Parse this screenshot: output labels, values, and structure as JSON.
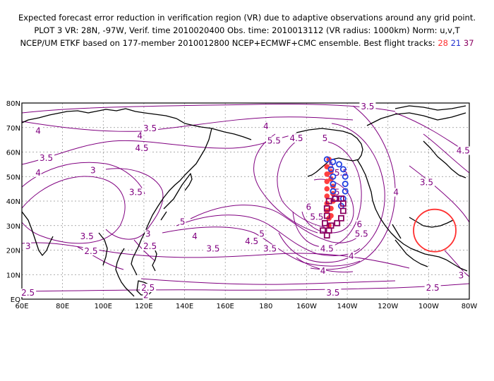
{
  "header": {
    "line1": "Expected forecast error reduction in verification region (VR) due to adaptive observations around any grid point.",
    "line2": "PLOT 3 VR: 28N, -97W, Verif. time 2010020400 Obs. time: 2010013112 (VR radius: 1000km) Norm: u,v,T",
    "line3_prefix": "NCEP/UM ETKF based on 177-member 2010012800 NCEP+ECMWF+CMC ensemble. Best flight tracks:",
    "track_a": "28",
    "track_b": "21",
    "track_c": "37"
  },
  "map": {
    "lon_labels": [
      "60E",
      "80E",
      "100E",
      "120E",
      "140E",
      "160E",
      "180",
      "160W",
      "140W",
      "120W",
      "100W",
      "80W"
    ],
    "lat_labels": [
      "EQ",
      "10N",
      "20N",
      "30N",
      "40N",
      "50N",
      "60N",
      "70N",
      "80N"
    ],
    "contour_labels": [
      {
        "text": "3.5",
        "lon": 230,
        "lat": 78
      },
      {
        "text": "4",
        "lon": 68,
        "lat": 68
      },
      {
        "text": "3.5",
        "lon": 123,
        "lat": 69
      },
      {
        "text": "4",
        "lon": 118,
        "lat": 66
      },
      {
        "text": "4",
        "lon": 180,
        "lat": 70
      },
      {
        "text": "5.5",
        "lon": 184,
        "lat": 64
      },
      {
        "text": "4.5",
        "lon": 195,
        "lat": 65
      },
      {
        "text": "5",
        "lon": 209,
        "lat": 65
      },
      {
        "text": "4.5",
        "lon": 119,
        "lat": 61
      },
      {
        "text": "3.5",
        "lon": 72,
        "lat": 57
      },
      {
        "text": "4",
        "lon": 68,
        "lat": 51
      },
      {
        "text": "3",
        "lon": 95,
        "lat": 52
      },
      {
        "text": "3.5",
        "lon": 116,
        "lat": 43
      },
      {
        "text": "5",
        "lon": 212,
        "lat": 54
      },
      {
        "text": "5.5",
        "lon": 217,
        "lat": 51
      },
      {
        "text": "4",
        "lon": 244,
        "lat": 43
      },
      {
        "text": "3.5",
        "lon": 259,
        "lat": 47
      },
      {
        "text": "4.5",
        "lon": 277,
        "lat": 60
      },
      {
        "text": "5",
        "lon": 211,
        "lat": 49
      },
      {
        "text": "5",
        "lon": 215,
        "lat": 43
      },
      {
        "text": "6",
        "lon": 201,
        "lat": 37
      },
      {
        "text": "5.5",
        "lon": 205,
        "lat": 33
      },
      {
        "text": "5",
        "lon": 178,
        "lat": 26
      },
      {
        "text": "4.5",
        "lon": 173,
        "lat": 23
      },
      {
        "text": "3.5",
        "lon": 182,
        "lat": 20
      },
      {
        "text": "4.5",
        "lon": 210,
        "lat": 20
      },
      {
        "text": "5.5",
        "lon": 227,
        "lat": 26
      },
      {
        "text": "6",
        "lon": 226,
        "lat": 30
      },
      {
        "text": "4",
        "lon": 222,
        "lat": 17
      },
      {
        "text": "5",
        "lon": 139,
        "lat": 31
      },
      {
        "text": "4",
        "lon": 145,
        "lat": 25
      },
      {
        "text": "3",
        "lon": 122,
        "lat": 26
      },
      {
        "text": "3.5",
        "lon": 92,
        "lat": 25
      },
      {
        "text": "3",
        "lon": 63,
        "lat": 21
      },
      {
        "text": "2.5",
        "lon": 94,
        "lat": 19
      },
      {
        "text": "2.5",
        "lon": 123,
        "lat": 21
      },
      {
        "text": "3.5",
        "lon": 154,
        "lat": 20
      },
      {
        "text": "4",
        "lon": 208,
        "lat": 11
      },
      {
        "text": "2.5",
        "lon": 63,
        "lat": 2
      },
      {
        "text": "2.5",
        "lon": 122,
        "lat": 4
      },
      {
        "text": "2",
        "lon": 121,
        "lat": 1
      },
      {
        "text": "3.5",
        "lon": 213,
        "lat": 2
      },
      {
        "text": "2.5",
        "lon": 262,
        "lat": 4
      },
      {
        "text": "3",
        "lon": 276,
        "lat": 9
      }
    ],
    "verification_region": {
      "lat": 28,
      "lon": -97
    },
    "colors": {
      "contour": "#800080",
      "coast": "#000000",
      "grid": "#808080",
      "vr_circle": "#ff3030",
      "track_red": "#ff4040",
      "track_blue": "#2040e0",
      "track_purple": "#8a0060"
    },
    "track_red": [
      [
        30,
        -149
      ],
      [
        33,
        -149
      ],
      [
        36,
        -150
      ],
      [
        39,
        -150
      ],
      [
        42,
        -150
      ],
      [
        45,
        -150
      ],
      [
        48,
        -150
      ],
      [
        51,
        -150
      ],
      [
        54,
        -150
      ],
      [
        57,
        -149
      ],
      [
        52,
        -148
      ],
      [
        49,
        -148
      ],
      [
        46,
        -147
      ],
      [
        43,
        -147
      ],
      [
        40,
        -147
      ],
      [
        37,
        -148
      ],
      [
        34,
        -148
      ]
    ],
    "track_blue": [
      [
        57,
        -150
      ],
      [
        56,
        -147
      ],
      [
        55,
        -144
      ],
      [
        53,
        -142
      ],
      [
        50,
        -141
      ],
      [
        47,
        -141
      ],
      [
        44,
        -141
      ],
      [
        41,
        -142
      ],
      [
        38,
        -143
      ],
      [
        41,
        -146
      ],
      [
        44,
        -147
      ],
      [
        47,
        -147
      ],
      [
        50,
        -147
      ],
      [
        53,
        -148
      ]
    ],
    "track_purple": [
      [
        28,
        -152
      ],
      [
        31,
        -151
      ],
      [
        34,
        -150
      ],
      [
        37,
        -150
      ],
      [
        40,
        -149
      ],
      [
        41,
        -146
      ],
      [
        41,
        -143
      ],
      [
        39,
        -142
      ],
      [
        36,
        -142
      ],
      [
        33,
        -143
      ],
      [
        31,
        -145
      ],
      [
        30,
        -148
      ],
      [
        28,
        -149
      ],
      [
        26,
        -150
      ]
    ]
  }
}
